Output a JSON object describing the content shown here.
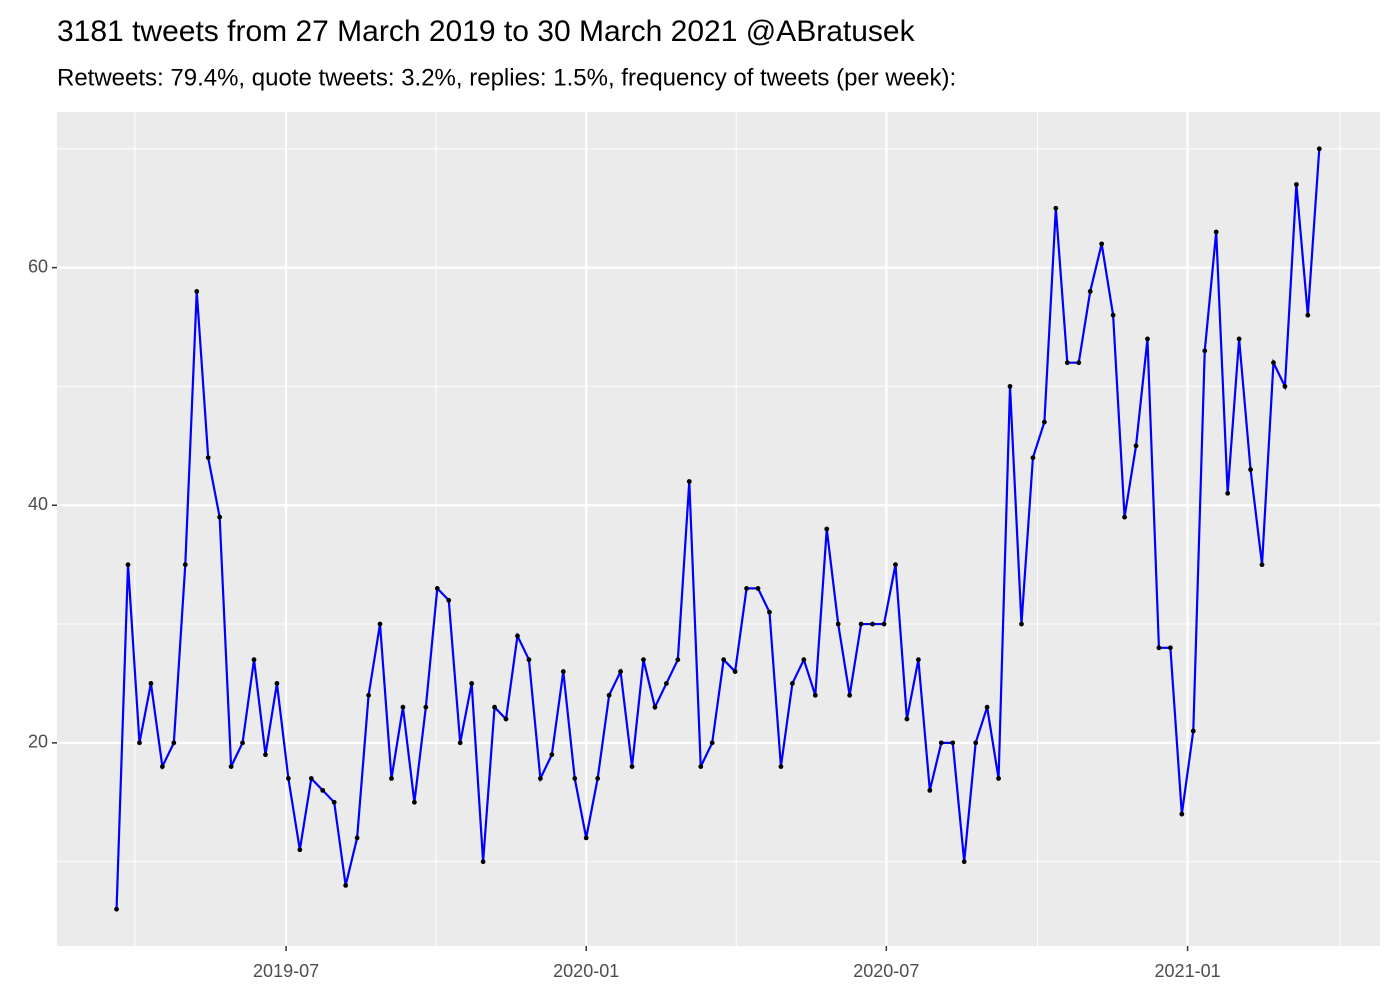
{
  "chart_data": {
    "type": "line",
    "title": "3181 tweets from 27 March 2019 to 30 March 2021 @ABratusek",
    "subtitle": "Retweets: 79.4%, quote tweets: 3.2%, replies: 1.5%, frequency of tweets (per week):",
    "series": [
      {
        "color": "#0000ff",
        "point_color": "#000000",
        "values": [
          6,
          35,
          20,
          25,
          18,
          20,
          35,
          58,
          44,
          39,
          18,
          20,
          27,
          19,
          25,
          17,
          11,
          17,
          16,
          15,
          8,
          12,
          24,
          30,
          17,
          23,
          15,
          23,
          33,
          32,
          20,
          25,
          10,
          23,
          22,
          29,
          27,
          17,
          19,
          26,
          17,
          12,
          17,
          24,
          26,
          18,
          27,
          23,
          25,
          27,
          42,
          18,
          20,
          27,
          26,
          33,
          33,
          31,
          18,
          25,
          27,
          24,
          38,
          30,
          24,
          30,
          30,
          30,
          35,
          22,
          27,
          16,
          20,
          20,
          10,
          20,
          23,
          17,
          50,
          30,
          44,
          47,
          65,
          52,
          52,
          58,
          62,
          56,
          39,
          45,
          54,
          28,
          28,
          14,
          21,
          53,
          63,
          41,
          54,
          43,
          35,
          52,
          50,
          67,
          56,
          70
        ]
      }
    ],
    "xlim": [
      -5.2,
      110.3
    ],
    "xticks": [
      {
        "value": 14.8,
        "label": "2019-07"
      },
      {
        "value": 41.0,
        "label": "2020-01"
      },
      {
        "value": 67.2,
        "label": "2020-07"
      },
      {
        "value": 93.5,
        "label": "2021-01"
      }
    ],
    "x_minor_grid": [
      1.6,
      27.9,
      54.1,
      80.4,
      106.8
    ],
    "ylim": [
      2.9,
      73.1
    ],
    "yticks": [
      20,
      40,
      60
    ],
    "y_minor_grid": [
      10,
      30,
      50,
      70
    ],
    "grid": true,
    "panel_color": "#ebebeb"
  }
}
